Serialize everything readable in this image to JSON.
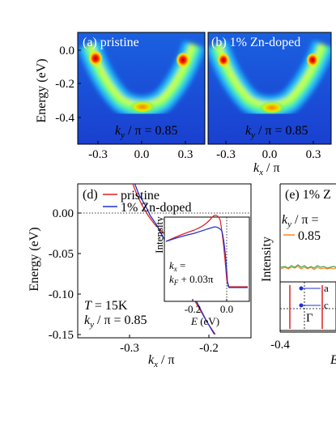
{
  "panel_a": {
    "label": "(a) pristine",
    "annotation_k": "k",
    "annotation_sub": "y",
    "annotation_rest": " / π  = 0.85"
  },
  "panel_b": {
    "label": "(b) 1% Zn-doped",
    "annotation_k": "k",
    "annotation_sub": "y",
    "annotation_rest": " / π  = 0.85"
  },
  "top_axes": {
    "ylabel": "Energy (eV)",
    "yticks": [
      "0.0",
      "-0.2",
      "-0.4"
    ],
    "xticks_a": [
      "-0.3",
      "0.0",
      "0.3"
    ],
    "xticks_b": [
      "-0.3",
      "0.0",
      "0.3"
    ],
    "xlabel_k": "k",
    "xlabel_sub": "x",
    "xlabel_rest": " / π"
  },
  "panel_d": {
    "label": "(d)",
    "legend": [
      "pristine",
      "1% Zn-doped"
    ],
    "ylabel": "Energy (eV)",
    "yticks": [
      "0.00",
      "-0.05",
      "-0.10",
      "-0.15"
    ],
    "xticks": [
      "-0.3",
      "-0.2"
    ],
    "xlabel_k": "k",
    "xlabel_sub": "x",
    "xlabel_rest": " / π",
    "temp": "T = 15K",
    "ky_k": "k",
    "ky_sub": "y",
    "ky_rest": " / π  = 0.85",
    "inset": {
      "ylabel": "Intensity",
      "kx_line1": "k",
      "kx_line1_sub": "x",
      "kx_line1_rest": " =",
      "kx_line2": "k",
      "kx_line2_sub": "F",
      "kx_line2_rest": " + 0.03π",
      "xticks": [
        "-0.2",
        "0.0"
      ],
      "xlabel": "E (eV)"
    }
  },
  "panel_e": {
    "label": "(e) 1% Z",
    "ky_k": "k",
    "ky_sub": "y",
    "ky_rest": " / π  =",
    "legend_value": "0.85",
    "ylabel": "Intensity",
    "xtick": "-0.4",
    "xlabel_partial": "E",
    "inset_labels": [
      "a",
      "c"
    ],
    "gamma": "Γ"
  },
  "colors": {
    "pristine": "#e02020",
    "zn": "#2030d0",
    "green": "#40a040",
    "orange": "#ff8020"
  },
  "chart_data": [
    {
      "type": "heatmap",
      "title": "(a) pristine",
      "xlabel": "kx / π",
      "ylabel": "Energy (eV)",
      "xlim": [
        -0.4,
        0.4
      ],
      "ylim": [
        -0.52,
        0.08
      ],
      "note": "ky / π = 0.85"
    },
    {
      "type": "heatmap",
      "title": "(b) 1% Zn-doped",
      "xlabel": "kx / π",
      "ylabel": "Energy (eV)",
      "xlim": [
        -0.4,
        0.4
      ],
      "ylim": [
        -0.52,
        0.08
      ],
      "note": "ky / π = 0.85"
    },
    {
      "type": "line",
      "title": "(d)",
      "xlabel": "kx / π",
      "ylabel": "Energy (eV)",
      "xlim": [
        -0.34,
        -0.17
      ],
      "ylim": [
        -0.175,
        0.045
      ],
      "series": [
        {
          "name": "pristine",
          "points": [
            [
              -0.286,
              0.045
            ],
            [
              -0.282,
              0.03
            ],
            [
              -0.277,
              0.015
            ],
            [
              -0.271,
              0.0
            ],
            [
              -0.265,
              -0.012
            ],
            [
              -0.258,
              -0.022
            ],
            [
              -0.252,
              -0.03
            ],
            [
              -0.247,
              -0.037
            ],
            [
              -0.245,
              -0.043
            ],
            [
              -0.249,
              -0.048
            ],
            [
              -0.252,
              -0.052
            ],
            [
              -0.251,
              -0.06
            ],
            [
              -0.245,
              -0.075
            ],
            [
              -0.237,
              -0.095
            ],
            [
              -0.228,
              -0.115
            ],
            [
              -0.22,
              -0.135
            ],
            [
              -0.212,
              -0.155
            ],
            [
              -0.205,
              -0.17
            ]
          ]
        },
        {
          "name": "1% Zn-doped",
          "points": [
            [
              -0.284,
              0.045
            ],
            [
              -0.28,
              0.03
            ],
            [
              -0.274,
              0.015
            ],
            [
              -0.269,
              0.0
            ],
            [
              -0.262,
              -0.015
            ],
            [
              -0.255,
              -0.035
            ],
            [
              -0.248,
              -0.055
            ],
            [
              -0.242,
              -0.072
            ],
            [
              -0.235,
              -0.09
            ],
            [
              -0.228,
              -0.11
            ],
            [
              -0.221,
              -0.13
            ],
            [
              -0.214,
              -0.15
            ],
            [
              -0.206,
              -0.17
            ]
          ]
        }
      ]
    }
  ]
}
